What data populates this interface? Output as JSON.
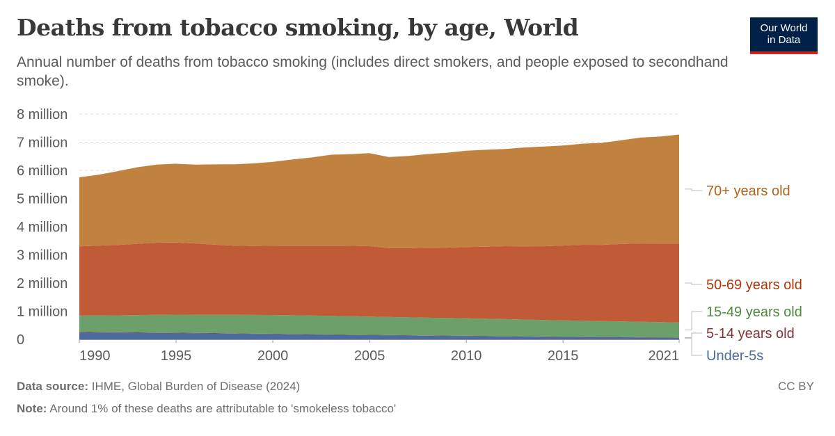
{
  "header": {
    "title": "Deaths from tobacco smoking, by age, World",
    "subtitle": "Annual number of deaths from tobacco smoking (includes direct smokers, and people exposed to secondhand smoke).",
    "logo_line1": "Our World",
    "logo_line2": "in Data"
  },
  "footer": {
    "source_label": "Data source:",
    "source_text": "IHME, Global Burden of Disease (2024)",
    "note_label": "Note:",
    "note_text": "Around 1% of these deaths are attributable to 'smokeless tobacco'",
    "license": "CC BY"
  },
  "chart_data": {
    "type": "area",
    "stacked": true,
    "title": "Deaths from tobacco smoking, by age, World",
    "xlim": [
      1990,
      2021
    ],
    "ylim": [
      0,
      8000000
    ],
    "x_ticks": [
      1990,
      1995,
      2000,
      2005,
      2010,
      2015,
      2021
    ],
    "x_tick_labels": [
      "1990",
      "1995",
      "2000",
      "2005",
      "2010",
      "2015",
      "2021"
    ],
    "y_ticks": [
      0,
      1000000,
      2000000,
      3000000,
      4000000,
      5000000,
      6000000,
      7000000,
      8000000
    ],
    "y_tick_labels": [
      "0",
      "1 million",
      "2 million",
      "3 million",
      "4 million",
      "5 million",
      "6 million",
      "7 million",
      "8 million"
    ],
    "grid": true,
    "legend": "right",
    "x": [
      1990,
      1991,
      1992,
      1993,
      1994,
      1995,
      1996,
      1997,
      1998,
      1999,
      2000,
      2001,
      2002,
      2003,
      2004,
      2005,
      2006,
      2007,
      2008,
      2009,
      2010,
      2011,
      2012,
      2013,
      2014,
      2015,
      2016,
      2017,
      2018,
      2019,
      2020,
      2021
    ],
    "series": [
      {
        "name": "Under-5s",
        "color": "#4c6a9c",
        "values": [
          250000,
          245000,
          240000,
          235000,
          230000,
          225000,
          218000,
          210000,
          202000,
          195000,
          188000,
          180000,
          172000,
          165000,
          158000,
          150000,
          143000,
          136000,
          130000,
          124000,
          118000,
          112000,
          106000,
          100000,
          95000,
          90000,
          85000,
          80000,
          75000,
          70000,
          65000,
          60000
        ]
      },
      {
        "name": "5-14 years old",
        "color": "#883039",
        "values": [
          12000,
          12000,
          12000,
          12000,
          12000,
          12000,
          11500,
          11500,
          11000,
          11000,
          10500,
          10500,
          10000,
          10000,
          9500,
          9500,
          9000,
          9000,
          8500,
          8500,
          8000,
          8000,
          7500,
          7500,
          7000,
          7000,
          6500,
          6500,
          6000,
          6000,
          5500,
          5500
        ]
      },
      {
        "name": "15-49 years old",
        "color": "#6d9f6a",
        "values": [
          580000,
          590000,
          600000,
          615000,
          630000,
          640000,
          645000,
          650000,
          655000,
          660000,
          665000,
          665000,
          665000,
          660000,
          655000,
          650000,
          640000,
          635000,
          630000,
          625000,
          620000,
          612000,
          605000,
          595000,
          585000,
          575000,
          567000,
          560000,
          555000,
          548000,
          540000,
          535000
        ]
      },
      {
        "name": "50-69 years old",
        "color": "#c05a37",
        "values": [
          2460000,
          2480000,
          2500000,
          2530000,
          2560000,
          2560000,
          2530000,
          2490000,
          2460000,
          2450000,
          2460000,
          2470000,
          2480000,
          2490000,
          2500000,
          2500000,
          2450000,
          2460000,
          2480000,
          2500000,
          2530000,
          2560000,
          2590000,
          2600000,
          2620000,
          2660000,
          2700000,
          2710000,
          2750000,
          2780000,
          2790000,
          2800000
        ]
      },
      {
        "name": "70+ years old",
        "color": "#c1823f",
        "values": [
          2450000,
          2520000,
          2620000,
          2720000,
          2770000,
          2800000,
          2800000,
          2850000,
          2890000,
          2930000,
          2980000,
          3060000,
          3130000,
          3230000,
          3250000,
          3300000,
          3230000,
          3270000,
          3330000,
          3370000,
          3420000,
          3440000,
          3450000,
          3510000,
          3540000,
          3550000,
          3590000,
          3620000,
          3680000,
          3760000,
          3800000,
          3870000
        ]
      }
    ]
  }
}
